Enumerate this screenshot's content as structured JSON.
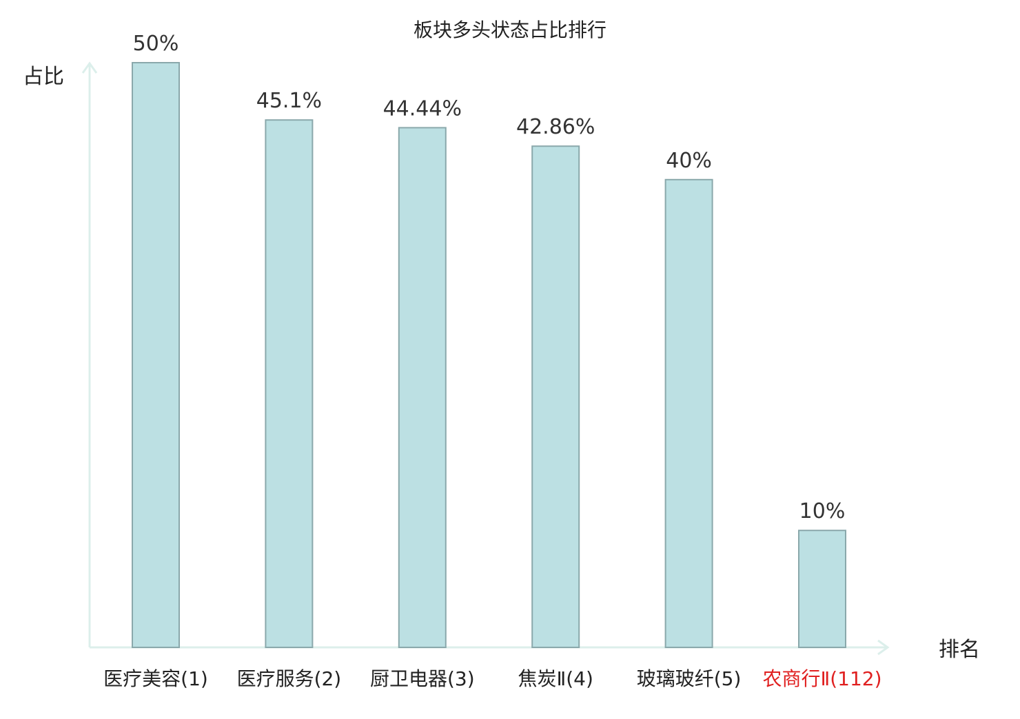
{
  "chart_data": {
    "type": "bar",
    "title": "板块多头状态占比排行",
    "xlabel": "排名",
    "ylabel": "占比",
    "categories": [
      "医疗美容(1)",
      "医疗服务(2)",
      "厨卫电器(3)",
      "焦炭Ⅱ(4)",
      "玻璃玻纤(5)",
      "农商行Ⅱ(112)"
    ],
    "values": [
      50,
      45.1,
      44.44,
      42.86,
      40,
      10
    ],
    "value_labels": [
      "50%",
      "45.1%",
      "44.44%",
      "42.86%",
      "40%",
      "10%"
    ],
    "highlighted_category_index": 5,
    "ylim": [
      0,
      50
    ],
    "grid": false,
    "colors": {
      "bar_fill": "#bce0e3",
      "bar_stroke": "#8aa8ab",
      "axis": "#dcefeb",
      "text": "#222222",
      "value_label": "#333333",
      "highlight": "#e02020"
    }
  }
}
